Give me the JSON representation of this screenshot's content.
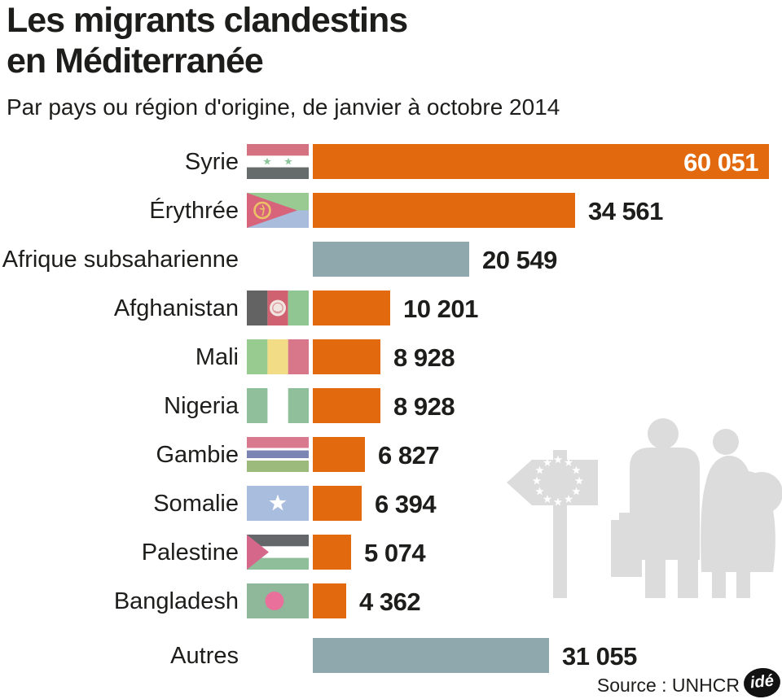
{
  "header": {
    "title_line1": "Les migrants clandestins",
    "title_line2": "en Méditerranée",
    "subtitle": "Par pays ou région d'origine, de janvier à octobre 2014"
  },
  "footer": {
    "source": "Source : UNHCR",
    "credit_logo": "idé"
  },
  "colors": {
    "bar_orange": "#e2690d",
    "bar_gray": "#8fa8ad",
    "art_gray": "#dcdcdc",
    "text_dark": "#1d1d1b",
    "value_on_bar": "#ffffff",
    "logo_bg": "#121212",
    "logo_text": "#ffffff"
  },
  "icons": {
    "background_art": "eu-signpost-and-migrant-family-silhouette"
  },
  "chart_data": {
    "type": "bar",
    "orientation": "horizontal",
    "title": "Les migrants clandestins en Méditerranée",
    "subtitle": "Par pays ou région d'origine, de janvier à octobre 2014",
    "source": "UNHCR",
    "value_range": [
      0,
      60051
    ],
    "legend": "none",
    "grid": false,
    "rows": [
      {
        "label": "Syrie",
        "value": 60051,
        "display_value": "60 051",
        "flag": "syria",
        "bar_color": "orange",
        "value_inside": true,
        "extra_gap": false
      },
      {
        "label": "Érythrée",
        "value": 34561,
        "display_value": "34 561",
        "flag": "eritrea",
        "bar_color": "orange",
        "value_inside": false,
        "extra_gap": false
      },
      {
        "label": "Afrique subsaharienne",
        "value": 20549,
        "display_value": "20 549",
        "flag": null,
        "bar_color": "gray",
        "value_inside": false,
        "extra_gap": false
      },
      {
        "label": "Afghanistan",
        "value": 10201,
        "display_value": "10 201",
        "flag": "afghanistan",
        "bar_color": "orange",
        "value_inside": false,
        "extra_gap": false
      },
      {
        "label": "Mali",
        "value": 8928,
        "display_value": "8 928",
        "flag": "mali",
        "bar_color": "orange",
        "value_inside": false,
        "extra_gap": false
      },
      {
        "label": "Nigeria",
        "value": 8928,
        "display_value": "8 928",
        "flag": "nigeria",
        "bar_color": "orange",
        "value_inside": false,
        "extra_gap": false
      },
      {
        "label": "Gambie",
        "value": 6827,
        "display_value": "6 827",
        "flag": "gambia",
        "bar_color": "orange",
        "value_inside": false,
        "extra_gap": false
      },
      {
        "label": "Somalie",
        "value": 6394,
        "display_value": "6 394",
        "flag": "somalia",
        "bar_color": "orange",
        "value_inside": false,
        "extra_gap": false
      },
      {
        "label": "Palestine",
        "value": 5074,
        "display_value": "5 074",
        "flag": "palestine",
        "bar_color": "orange",
        "value_inside": false,
        "extra_gap": false
      },
      {
        "label": "Bangladesh",
        "value": 4362,
        "display_value": "4 362",
        "flag": "bangladesh",
        "bar_color": "orange",
        "value_inside": false,
        "extra_gap": false
      },
      {
        "label": "Autres",
        "value": 31055,
        "display_value": "31 055",
        "flag": null,
        "bar_color": "gray",
        "value_inside": false,
        "extra_gap": true
      }
    ]
  }
}
